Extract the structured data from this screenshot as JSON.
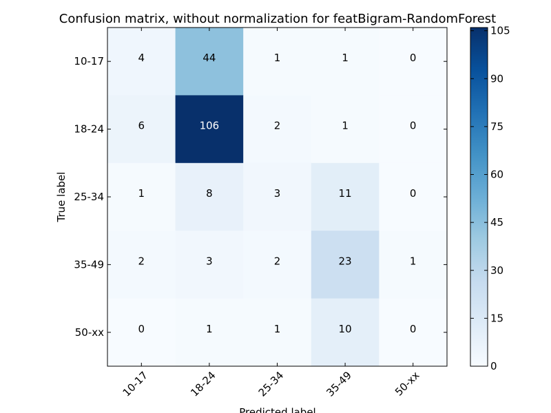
{
  "chart_data": {
    "type": "heatmap",
    "title": "Confusion matrix, without normalization for featBigram-RandomForest",
    "xlabel": "Predicted label",
    "ylabel": "True label",
    "x_categories": [
      "10-17",
      "18-24",
      "25-34",
      "35-49",
      "50-xx"
    ],
    "y_categories": [
      "10-17",
      "18-24",
      "25-34",
      "35-49",
      "50-xx"
    ],
    "values": [
      [
        4,
        44,
        1,
        1,
        0
      ],
      [
        6,
        106,
        2,
        1,
        0
      ],
      [
        1,
        8,
        3,
        11,
        0
      ],
      [
        2,
        3,
        2,
        23,
        1
      ],
      [
        0,
        1,
        1,
        10,
        0
      ]
    ],
    "colormap": "Blues",
    "color_range": [
      0,
      106
    ],
    "colorbar_ticks": [
      0,
      15,
      30,
      45,
      60,
      75,
      90,
      105
    ]
  }
}
